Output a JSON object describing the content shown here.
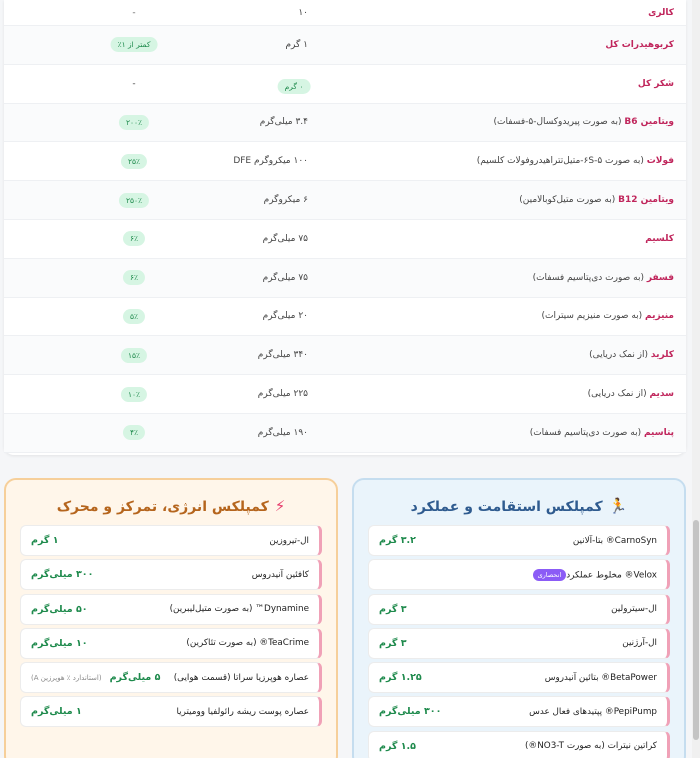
{
  "nutrition": [
    {
      "name": "کالری",
      "sub": "",
      "amount": "۱۰",
      "dv": "-",
      "dv_pill": false
    },
    {
      "name": "کربوهیدرات کل",
      "sub": "",
      "amount": "۱ گرم",
      "dv": "کمتر از ۱٪",
      "dv_pill": true
    },
    {
      "name": "شکر کل",
      "sub": "",
      "amount": "-",
      "dv": "",
      "dv_pill": false,
      "amount_pill": "۰ گرم"
    },
    {
      "name": "ویتامین B6",
      "sub": " (به صورت پیریدوکسال-۵-فسفات)",
      "amount": "۳.۴ میلی‌گرم",
      "dv": "۲۰۰٪",
      "dv_pill": true
    },
    {
      "name": "فولات",
      "sub": " (به صورت ۵-۶S-متیل‌تتراهیدروفولات کلسیم)",
      "amount": "۱۰۰ میکروگرم DFE",
      "dv": "۲۵٪",
      "dv_pill": true
    },
    {
      "name": "ویتامین B12",
      "sub": " (به صورت متیل‌کوبالامین)",
      "amount": "۶ میکروگرم",
      "dv": "۲۵۰٪",
      "dv_pill": true
    },
    {
      "name": "کلسیم",
      "sub": "",
      "amount": "۷۵ میلی‌گرم",
      "dv": "۶٪",
      "dv_pill": true
    },
    {
      "name": "فسفر",
      "sub": " (به صورت دی‌پتاسیم فسفات)",
      "amount": "۷۵ میلی‌گرم",
      "dv": "۶٪",
      "dv_pill": true
    },
    {
      "name": "منیزیم",
      "sub": " (به صورت منیزیم سیترات)",
      "amount": "۲۰ میلی‌گرم",
      "dv": "۵٪",
      "dv_pill": true
    },
    {
      "name": "کلرید",
      "sub": " (از نمک دریایی)",
      "amount": "۳۴۰ میلی‌گرم",
      "dv": "۱۵٪",
      "dv_pill": true
    },
    {
      "name": "سدیم",
      "sub": " (از نمک دریایی)",
      "amount": "۲۲۵ میلی‌گرم",
      "dv": "۱۰٪",
      "dv_pill": true
    },
    {
      "name": "پتاسیم",
      "sub": " (به صورت دی‌پتاسیم فسفات)",
      "amount": "۱۹۰ میلی‌گرم",
      "dv": "۴٪",
      "dv_pill": true
    }
  ],
  "energy_card": {
    "title": "کمپلکس انرژی، تمرکز و محرک",
    "icon": "lightning-icon",
    "items": [
      {
        "name": "ال-تیروزین",
        "amount": "۱ گرم",
        "note": ""
      },
      {
        "name": "کافئین آنیدروس",
        "amount": "۳۰۰ میلی‌گرم",
        "note": ""
      },
      {
        "name": "Dynamine™ (به صورت متیل‌لیبرین)",
        "amount": "۵۰ میلی‌گرم",
        "note": ""
      },
      {
        "name": "TeaCrime® (به صورت تئاکرین)",
        "amount": "۱۰ میلی‌گرم",
        "note": ""
      },
      {
        "name": "عصاره هوپرزیا سراتا (قسمت هوایی)",
        "amount": "۵ میلی‌گرم",
        "note": "(استاندارد ٪ هوپرزین A)"
      },
      {
        "name": "عصاره پوست ریشه رائولفیا وومیتریا",
        "amount": "۱ میلی‌گرم",
        "note": ""
      }
    ]
  },
  "endurance_card": {
    "title": "کمپلکس استقامت و عملکرد",
    "icon": "runner-icon",
    "items": [
      {
        "name": "CarnoSyn® بتا-آلانین",
        "amount": "۳.۲ گرم",
        "badge": ""
      },
      {
        "name": "Velox® مخلوط عملکرد",
        "amount": "",
        "badge": "انحصاری"
      },
      {
        "name": "ال-سیترولین",
        "amount": "۳ گرم",
        "badge": ""
      },
      {
        "name": "ال-آرژنین",
        "amount": "۳ گرم",
        "badge": ""
      },
      {
        "name": "BetaPower® بتائین آنیدروس",
        "amount": "۱.۲۵ گرم",
        "badge": ""
      },
      {
        "name": "PepiPump® پپتیدهای فعال عدس",
        "amount": "۳۰۰ میلی‌گرم",
        "badge": ""
      },
      {
        "name": "کراتین نیترات (به صورت NO3-T®)",
        "amount": "۱.۵ گرم",
        "badge": ""
      }
    ]
  }
}
